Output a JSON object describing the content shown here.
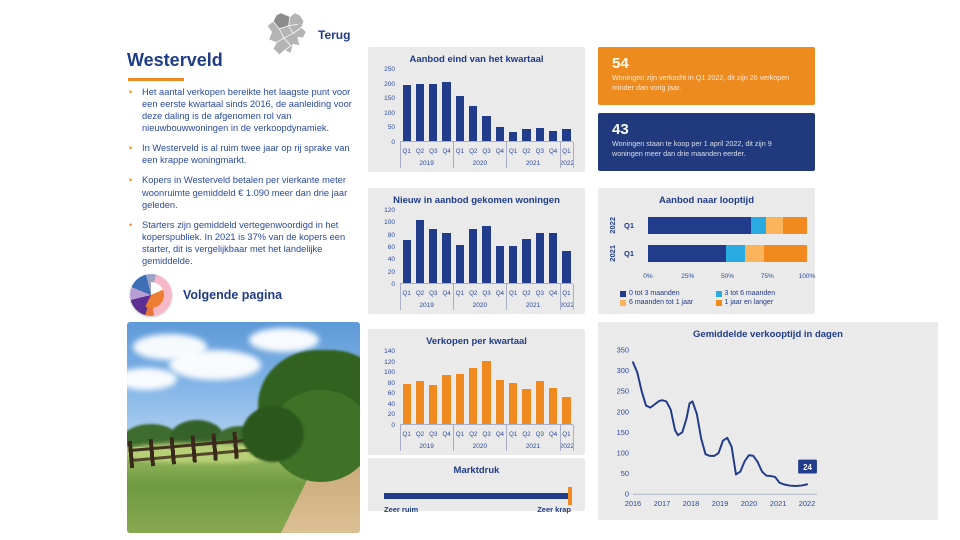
{
  "nav": {
    "back_label": "Terug"
  },
  "page": {
    "title": "Westerveld",
    "next_page_label": "Volgende pagina"
  },
  "bullets": [
    "Het aantal verkopen bereikte het laagste punt voor een eerste kwartaal sinds 2016, de aanleiding voor deze daling is de afgenomen rol van nieuwbouwwoningen in de verkoopdynamiek.",
    "In Westerveld is al ruim twee jaar op rij sprake van een krappe woningmarkt.",
    "Kopers in Westerveld betalen per vierkante meter woonruimte gemiddeld € 1.090 meer dan drie jaar geleden.",
    "Starters zijn gemiddeld vertegenwoordigd in het koperspubliek. In 2021 is 37% van de kopers een starter, dit is vergelijkbaar met het landelijke gemiddelde."
  ],
  "stat_cards": [
    {
      "value": "54",
      "text": "Woningen zijn verkocht in Q1 2022, dit zijn 26 verkopen minder dan vorig jaar.",
      "color": "#EE8B1E"
    },
    {
      "value": "43",
      "text": "Woningen staan te koop per 1 april 2022, dit zijn 9 woningen meer dan drie maanden eerder.",
      "color": "#203A7D"
    }
  ],
  "colors": {
    "navy": "#1F3C88",
    "orange": "#F08A1E",
    "light_blue": "#29ABE2",
    "light_orange": "#FBB45C",
    "panel_bg": "#EAEAEB"
  },
  "chart_data": [
    {
      "id": "aanbod-eind",
      "type": "bar",
      "title": "Aanbod eind van het kwartaal",
      "categories": [
        "Q1",
        "Q2",
        "Q3",
        "Q4",
        "Q1",
        "Q2",
        "Q3",
        "Q4",
        "Q1",
        "Q2",
        "Q3",
        "Q4",
        "Q1"
      ],
      "year_groups": [
        {
          "label": "2019",
          "span": 4
        },
        {
          "label": "2020",
          "span": 4
        },
        {
          "label": "2021",
          "span": 4
        },
        {
          "label": "2022",
          "span": 1
        }
      ],
      "values": [
        200,
        205,
        205,
        210,
        160,
        125,
        90,
        50,
        33,
        43,
        45,
        34,
        43
      ],
      "ylim": [
        0,
        250
      ],
      "yticks": [
        0,
        50,
        100,
        150,
        200,
        250
      ],
      "bar_color": "#203C8A"
    },
    {
      "id": "nieuw-aanbod",
      "type": "bar",
      "title": "Nieuw in aanbod gekomen woningen",
      "categories": [
        "Q1",
        "Q2",
        "Q3",
        "Q4",
        "Q1",
        "Q2",
        "Q3",
        "Q4",
        "Q1",
        "Q2",
        "Q3",
        "Q4",
        "Q1"
      ],
      "year_groups": [
        {
          "label": "2019",
          "span": 4
        },
        {
          "label": "2020",
          "span": 4
        },
        {
          "label": "2021",
          "span": 4
        },
        {
          "label": "2022",
          "span": 1
        }
      ],
      "values": [
        72,
        107,
        92,
        85,
        64,
        92,
        96,
        63,
        63,
        75,
        84,
        84,
        54
      ],
      "ylim": [
        0,
        120
      ],
      "yticks": [
        0,
        20,
        40,
        60,
        80,
        100,
        120
      ],
      "bar_color": "#203C8A"
    },
    {
      "id": "verkopen",
      "type": "bar",
      "title": "Verkopen per kwartaal",
      "categories": [
        "Q1",
        "Q2",
        "Q3",
        "Q4",
        "Q1",
        "Q2",
        "Q3",
        "Q4",
        "Q1",
        "Q2",
        "Q3",
        "Q4",
        "Q1"
      ],
      "year_groups": [
        {
          "label": "2019",
          "span": 4
        },
        {
          "label": "2020",
          "span": 4
        },
        {
          "label": "2021",
          "span": 4
        },
        {
          "label": "2022",
          "span": 1
        }
      ],
      "values": [
        79,
        85,
        76,
        96,
        98,
        111,
        125,
        87,
        80,
        70,
        84,
        72,
        54
      ],
      "ylim": [
        0,
        140
      ],
      "yticks": [
        0,
        20,
        40,
        60,
        80,
        100,
        120,
        140
      ],
      "bar_color": "#F08A1E"
    },
    {
      "id": "looptijd",
      "type": "stacked_bar_h",
      "title": "Aanbod naar looptijd",
      "rows": [
        {
          "group": "2022",
          "label": "Q1",
          "values": [
            65,
            9,
            11,
            15
          ]
        },
        {
          "group": "2021",
          "label": "Q1",
          "values": [
            49,
            12,
            12,
            27
          ]
        }
      ],
      "segment_colors": [
        "#203C8A",
        "#29ABE2",
        "#FBB45C",
        "#F08A1E"
      ],
      "xticks": [
        "0%",
        "25%",
        "50%",
        "75%",
        "100%"
      ],
      "legend": [
        "0 tot 3 maanden",
        "3 tot 6 maanden",
        "6 maanden tot 1 jaar",
        "1 jaar en langer"
      ]
    },
    {
      "id": "marktdruk",
      "type": "gauge",
      "title": "Marktdruk",
      "left_label": "Zeer ruim",
      "right_label": "Zeer krap",
      "value_pct": 99.5,
      "bar_color": "#203C8A",
      "marker_color": "#F08A1E"
    },
    {
      "id": "verkooptijd",
      "type": "line",
      "title": "Gemiddelde verkooptijd in dagen",
      "x": [
        2016.0,
        2016.15,
        2016.3,
        2016.45,
        2016.6,
        2016.75,
        2016.9,
        2017.0,
        2017.15,
        2017.3,
        2017.45,
        2017.55,
        2017.7,
        2017.85,
        2017.95,
        2018.05,
        2018.2,
        2018.35,
        2018.5,
        2018.65,
        2018.8,
        2018.95,
        2019.1,
        2019.25,
        2019.4,
        2019.55,
        2019.7,
        2019.85,
        2020.0,
        2020.15,
        2020.3,
        2020.45,
        2020.6,
        2020.75,
        2020.9,
        2021.05,
        2021.2,
        2021.4,
        2021.6,
        2021.8,
        2022.0
      ],
      "y": [
        320,
        295,
        250,
        215,
        210,
        218,
        226,
        228,
        225,
        205,
        155,
        143,
        150,
        185,
        220,
        225,
        195,
        135,
        97,
        93,
        93,
        100,
        130,
        137,
        115,
        48,
        55,
        80,
        95,
        93,
        78,
        55,
        45,
        44,
        42,
        28,
        24,
        21,
        20,
        21,
        24
      ],
      "xticks": [
        2016,
        2017,
        2018,
        2019,
        2020,
        2021,
        2022
      ],
      "yticks": [
        0,
        50,
        100,
        150,
        200,
        250,
        300,
        350
      ],
      "xlim": [
        2016,
        2022.2
      ],
      "ylim": [
        0,
        350
      ],
      "line_color": "#203C8A",
      "end_label": "24"
    }
  ]
}
